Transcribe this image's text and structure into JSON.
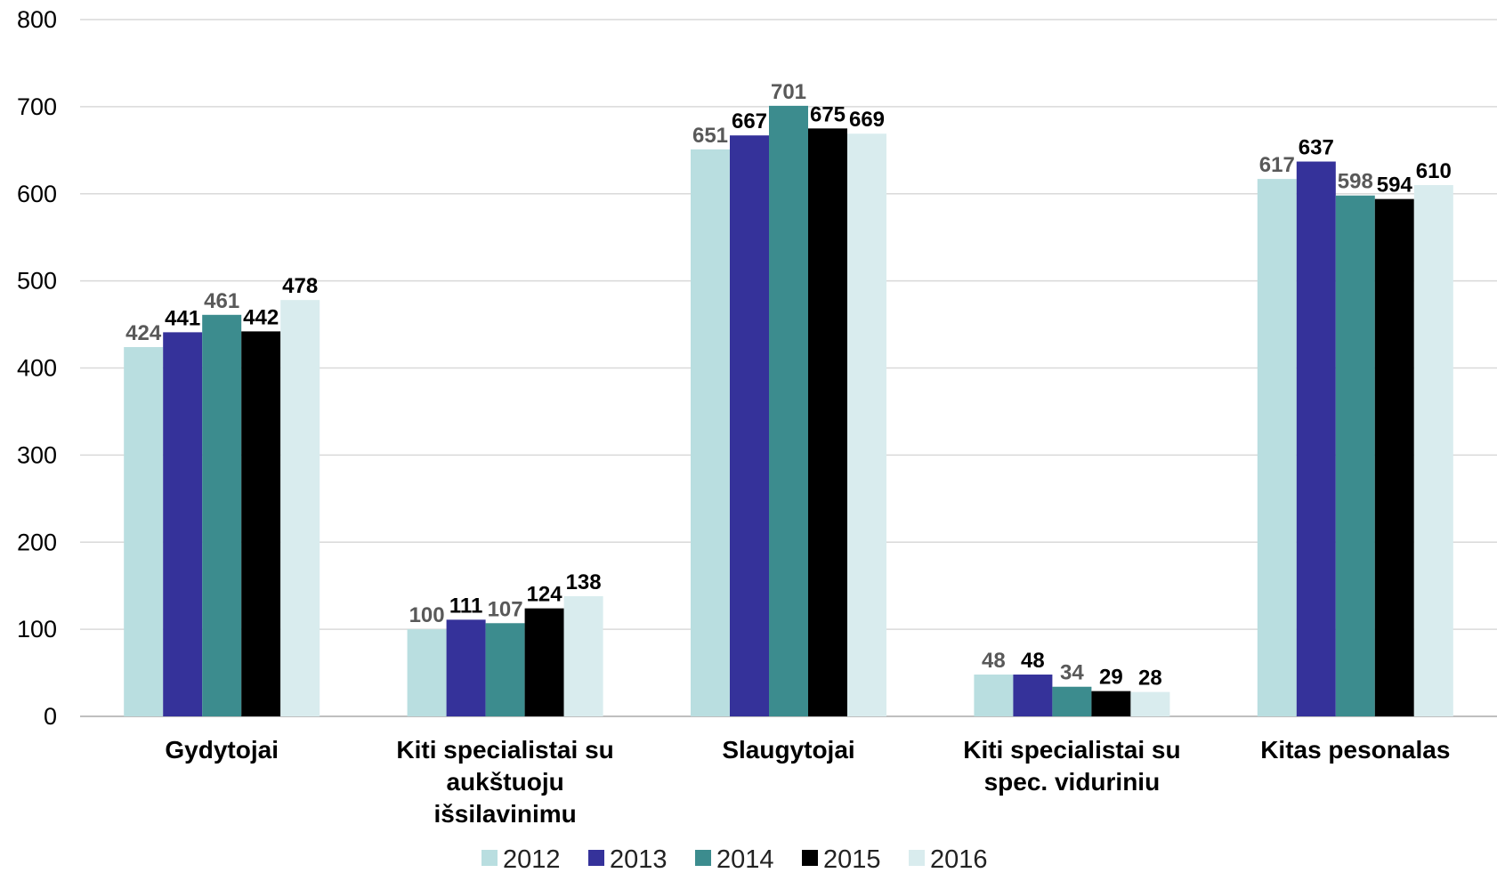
{
  "chart_data": {
    "type": "bar",
    "categories": [
      [
        "Gydytojai"
      ],
      [
        "Kiti specialistai su",
        "aukštuoju",
        "išsilavinimu"
      ],
      [
        "Slaugytojai"
      ],
      [
        "Kiti specialistai su",
        "spec. viduriniu"
      ],
      [
        "Kitas pesonalas"
      ]
    ],
    "series": [
      {
        "name": "2012",
        "color": "#b9dee0",
        "label_color": "#595959",
        "values": [
          424,
          100,
          651,
          48,
          617
        ]
      },
      {
        "name": "2013",
        "color": "#35329a",
        "label_color": "#000000",
        "values": [
          441,
          111,
          667,
          48,
          637
        ]
      },
      {
        "name": "2014",
        "color": "#3c8c8e",
        "label_color": "#595959",
        "values": [
          461,
          107,
          701,
          34,
          598
        ]
      },
      {
        "name": "2015",
        "color": "#000000",
        "label_color": "#000000",
        "values": [
          442,
          124,
          675,
          29,
          594
        ]
      },
      {
        "name": "2016",
        "color": "#d9ecee",
        "label_color": "#000000",
        "values": [
          478,
          138,
          669,
          28,
          610
        ]
      }
    ],
    "ylim": [
      0,
      800
    ],
    "yticks": [
      0,
      100,
      200,
      300,
      400,
      500,
      600,
      700,
      800
    ],
    "grid": true,
    "legend": "bottom",
    "data_labels": true
  }
}
